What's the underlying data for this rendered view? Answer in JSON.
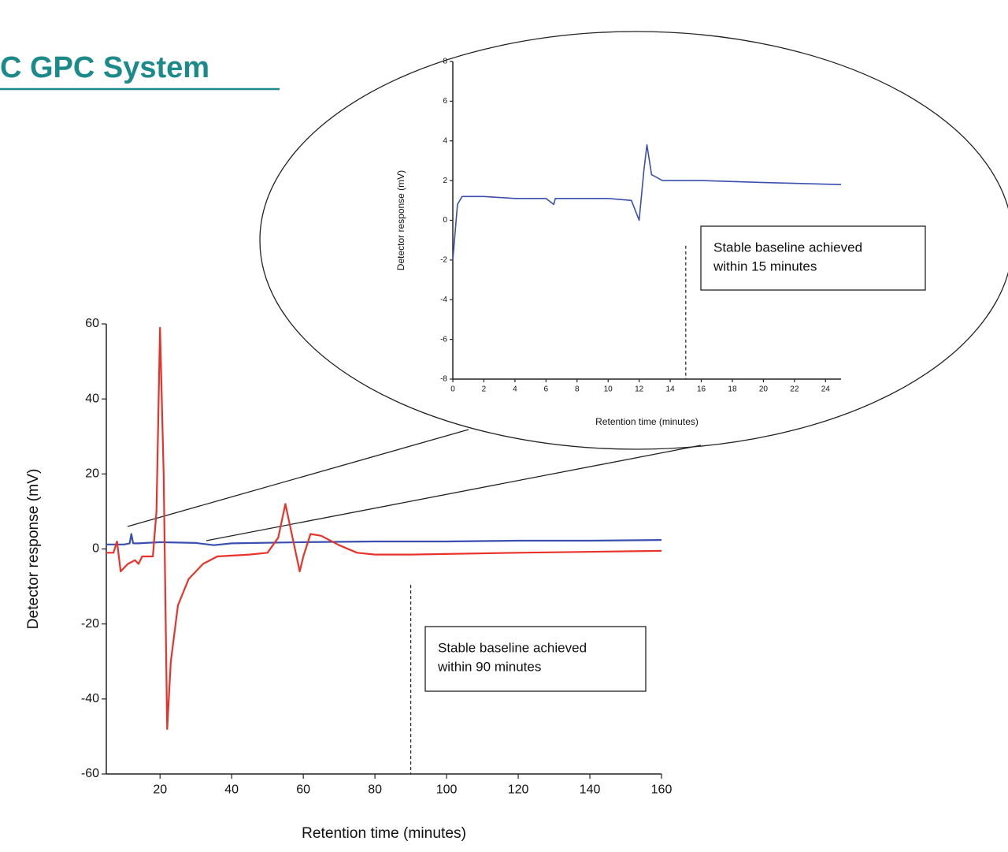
{
  "title": "C GPC System",
  "chart_data": [
    {
      "type": "line",
      "xlabel": "Retention time (minutes)",
      "ylabel": "Detector response (mV)",
      "xlim": [
        5,
        160
      ],
      "ylim": [
        -60,
        60
      ],
      "xticks": [
        20,
        40,
        60,
        80,
        100,
        120,
        140,
        160
      ],
      "yticks": [
        -60,
        -40,
        -20,
        0,
        20,
        40,
        60
      ],
      "series": [
        {
          "color": "#3a4fb0",
          "x": [
            5,
            10,
            11.5,
            12,
            12.5,
            14,
            20,
            30,
            35,
            40,
            60,
            80,
            100,
            120,
            140,
            160
          ],
          "values": [
            1.2,
            1.2,
            1.5,
            4,
            1.5,
            1.5,
            1.8,
            1.6,
            1.0,
            1.5,
            1.8,
            2.0,
            2.0,
            2.2,
            2.2,
            2.4
          ]
        },
        {
          "color": "#e8322a",
          "x": [
            5,
            7,
            8,
            9,
            11,
            13,
            14,
            15,
            18,
            19,
            20,
            21,
            22,
            23,
            25,
            28,
            32,
            36,
            45,
            50,
            53,
            55,
            57,
            59,
            60,
            62,
            65,
            70,
            75,
            80,
            90,
            120,
            160
          ],
          "values": [
            -1,
            -1,
            2,
            -6,
            -4,
            -3,
            -4,
            -2,
            -2,
            10,
            59,
            20,
            -48,
            -30,
            -15,
            -8,
            -4,
            -2,
            -1.5,
            -1,
            3,
            12,
            3,
            -6,
            -2,
            4,
            3.5,
            1,
            -1,
            -1.5,
            -1.5,
            -1,
            -0.5
          ]
        }
      ],
      "marker_x": 90,
      "annotation": [
        "Stable baseline achieved",
        "within 90 minutes"
      ]
    },
    {
      "type": "line",
      "xlabel": "Retention time (minutes)",
      "ylabel": "Detector response (mV)",
      "xlim": [
        0,
        25
      ],
      "ylim": [
        -8,
        8
      ],
      "xticks": [
        0,
        2,
        4,
        6,
        8,
        10,
        12,
        14,
        16,
        18,
        20,
        22,
        24
      ],
      "yticks": [
        -8,
        -6,
        -4,
        -2,
        0,
        2,
        4,
        6,
        8
      ],
      "series": [
        {
          "color": "#3a4fb0",
          "x": [
            0,
            0.3,
            0.6,
            2,
            4,
            6,
            6.5,
            6.6,
            10,
            11.5,
            12,
            12.3,
            12.5,
            12.8,
            13.5,
            16,
            20,
            25
          ],
          "values": [
            -2,
            0.8,
            1.2,
            1.2,
            1.1,
            1.1,
            0.8,
            1.1,
            1.1,
            1.0,
            0,
            2.5,
            3.8,
            2.3,
            2.0,
            2.0,
            1.9,
            1.8
          ]
        }
      ],
      "marker_x": 15,
      "annotation": [
        "Stable baseline achieved",
        "within 15 minutes"
      ]
    }
  ]
}
